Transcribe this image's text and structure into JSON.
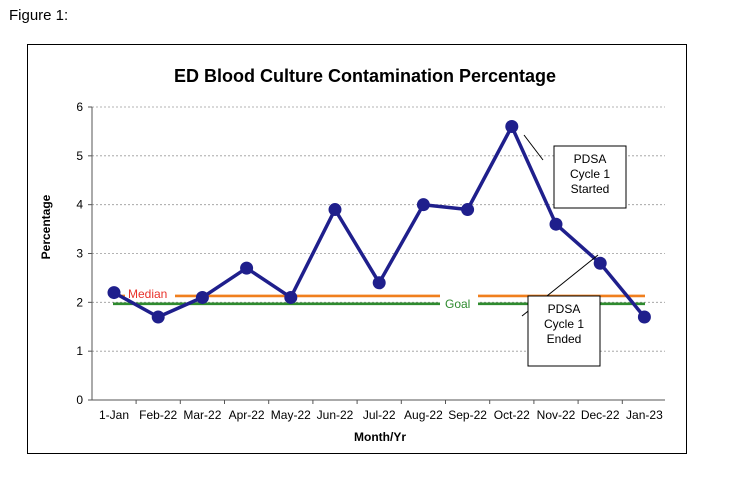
{
  "figure_label": "Figure 1:",
  "chart_data": {
    "type": "line",
    "title": "ED Blood Culture Contamination Percentage",
    "xlabel": "Month/Yr",
    "ylabel": "Percentage",
    "ylim": [
      0,
      6
    ],
    "yticks": [
      "0",
      "1",
      "2",
      "3",
      "4",
      "5",
      "6"
    ],
    "grid": "horizontal dashed",
    "categories": [
      "1-Jan",
      "Feb-22",
      "Mar-22",
      "Apr-22",
      "May-22",
      "Jun-22",
      "Jul-22",
      "Aug-22",
      "Sep-22",
      "Oct-22",
      "Nov-22",
      "Dec-22",
      "Jan-23"
    ],
    "series": [
      {
        "values": [
          2.2,
          1.7,
          2.1,
          2.7,
          2.1,
          3.9,
          2.4,
          4.0,
          3.9,
          5.6,
          3.6,
          2.8,
          1.7
        ],
        "color": "#1f1f8c"
      }
    ],
    "reference_lines": [
      {
        "name": "Median",
        "value": 2.1,
        "color": "#f07f1e",
        "label_color": "#e8322b"
      },
      {
        "name": "Goal",
        "value": 2.0,
        "color": "#2e8b2e",
        "label_color": "#2e8b2e"
      }
    ],
    "annotations": [
      {
        "lines": [
          "PDSA",
          "Cycle 1",
          "Started"
        ]
      },
      {
        "lines": [
          "PDSA",
          "Cycle 1",
          "Ended"
        ]
      }
    ]
  }
}
